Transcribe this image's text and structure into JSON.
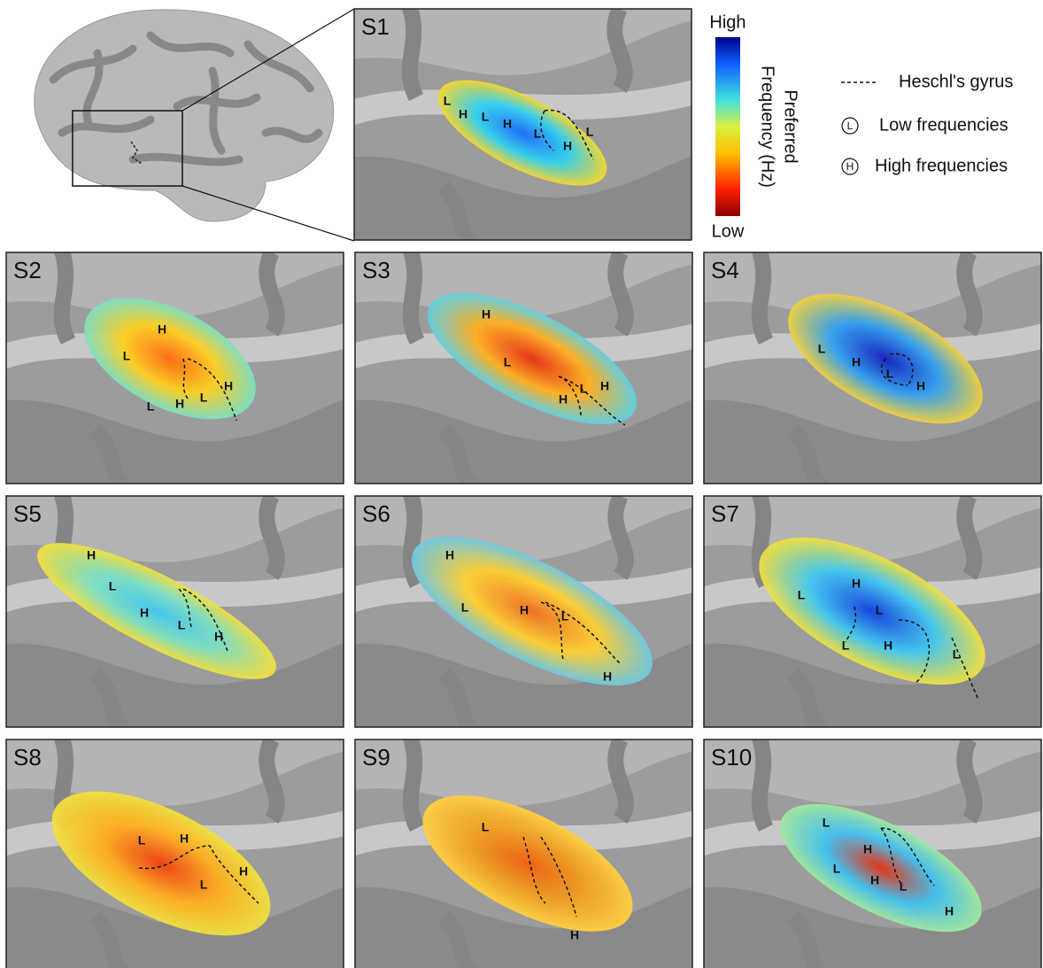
{
  "colorbar": {
    "high": "High",
    "low": "Low",
    "title_line1": "Preferred",
    "title_line2": "Frequency (Hz)"
  },
  "legend": [
    {
      "label": "Heschl's gyrus"
    },
    {
      "symbol": "L",
      "label": "Low frequencies"
    },
    {
      "symbol": "H",
      "label": "High frequencies"
    }
  ],
  "panels": [
    {
      "label": "S1",
      "markers": [
        "L",
        "H",
        "L",
        "H",
        "L",
        "H",
        "L"
      ]
    },
    {
      "label": "S2",
      "markers": [
        "H",
        "L",
        "H",
        "L",
        "H",
        "L"
      ]
    },
    {
      "label": "S3",
      "markers": [
        "H",
        "L",
        "L",
        "H",
        "H"
      ]
    },
    {
      "label": "S4",
      "markers": [
        "L",
        "H",
        "L",
        "H"
      ]
    },
    {
      "label": "S5",
      "markers": [
        "H",
        "L",
        "H",
        "L",
        "H"
      ]
    },
    {
      "label": "S6",
      "markers": [
        "H",
        "L",
        "H",
        "L",
        "H"
      ]
    },
    {
      "label": "S7",
      "markers": [
        "H",
        "L",
        "L",
        "H",
        "L",
        "L"
      ]
    },
    {
      "label": "S8",
      "markers": [
        "L",
        "H",
        "H",
        "L"
      ]
    },
    {
      "label": "S9",
      "markers": [
        "L",
        "H"
      ]
    },
    {
      "label": "S10",
      "markers": [
        "L",
        "H",
        "L",
        "H",
        "L",
        "H"
      ]
    }
  ]
}
